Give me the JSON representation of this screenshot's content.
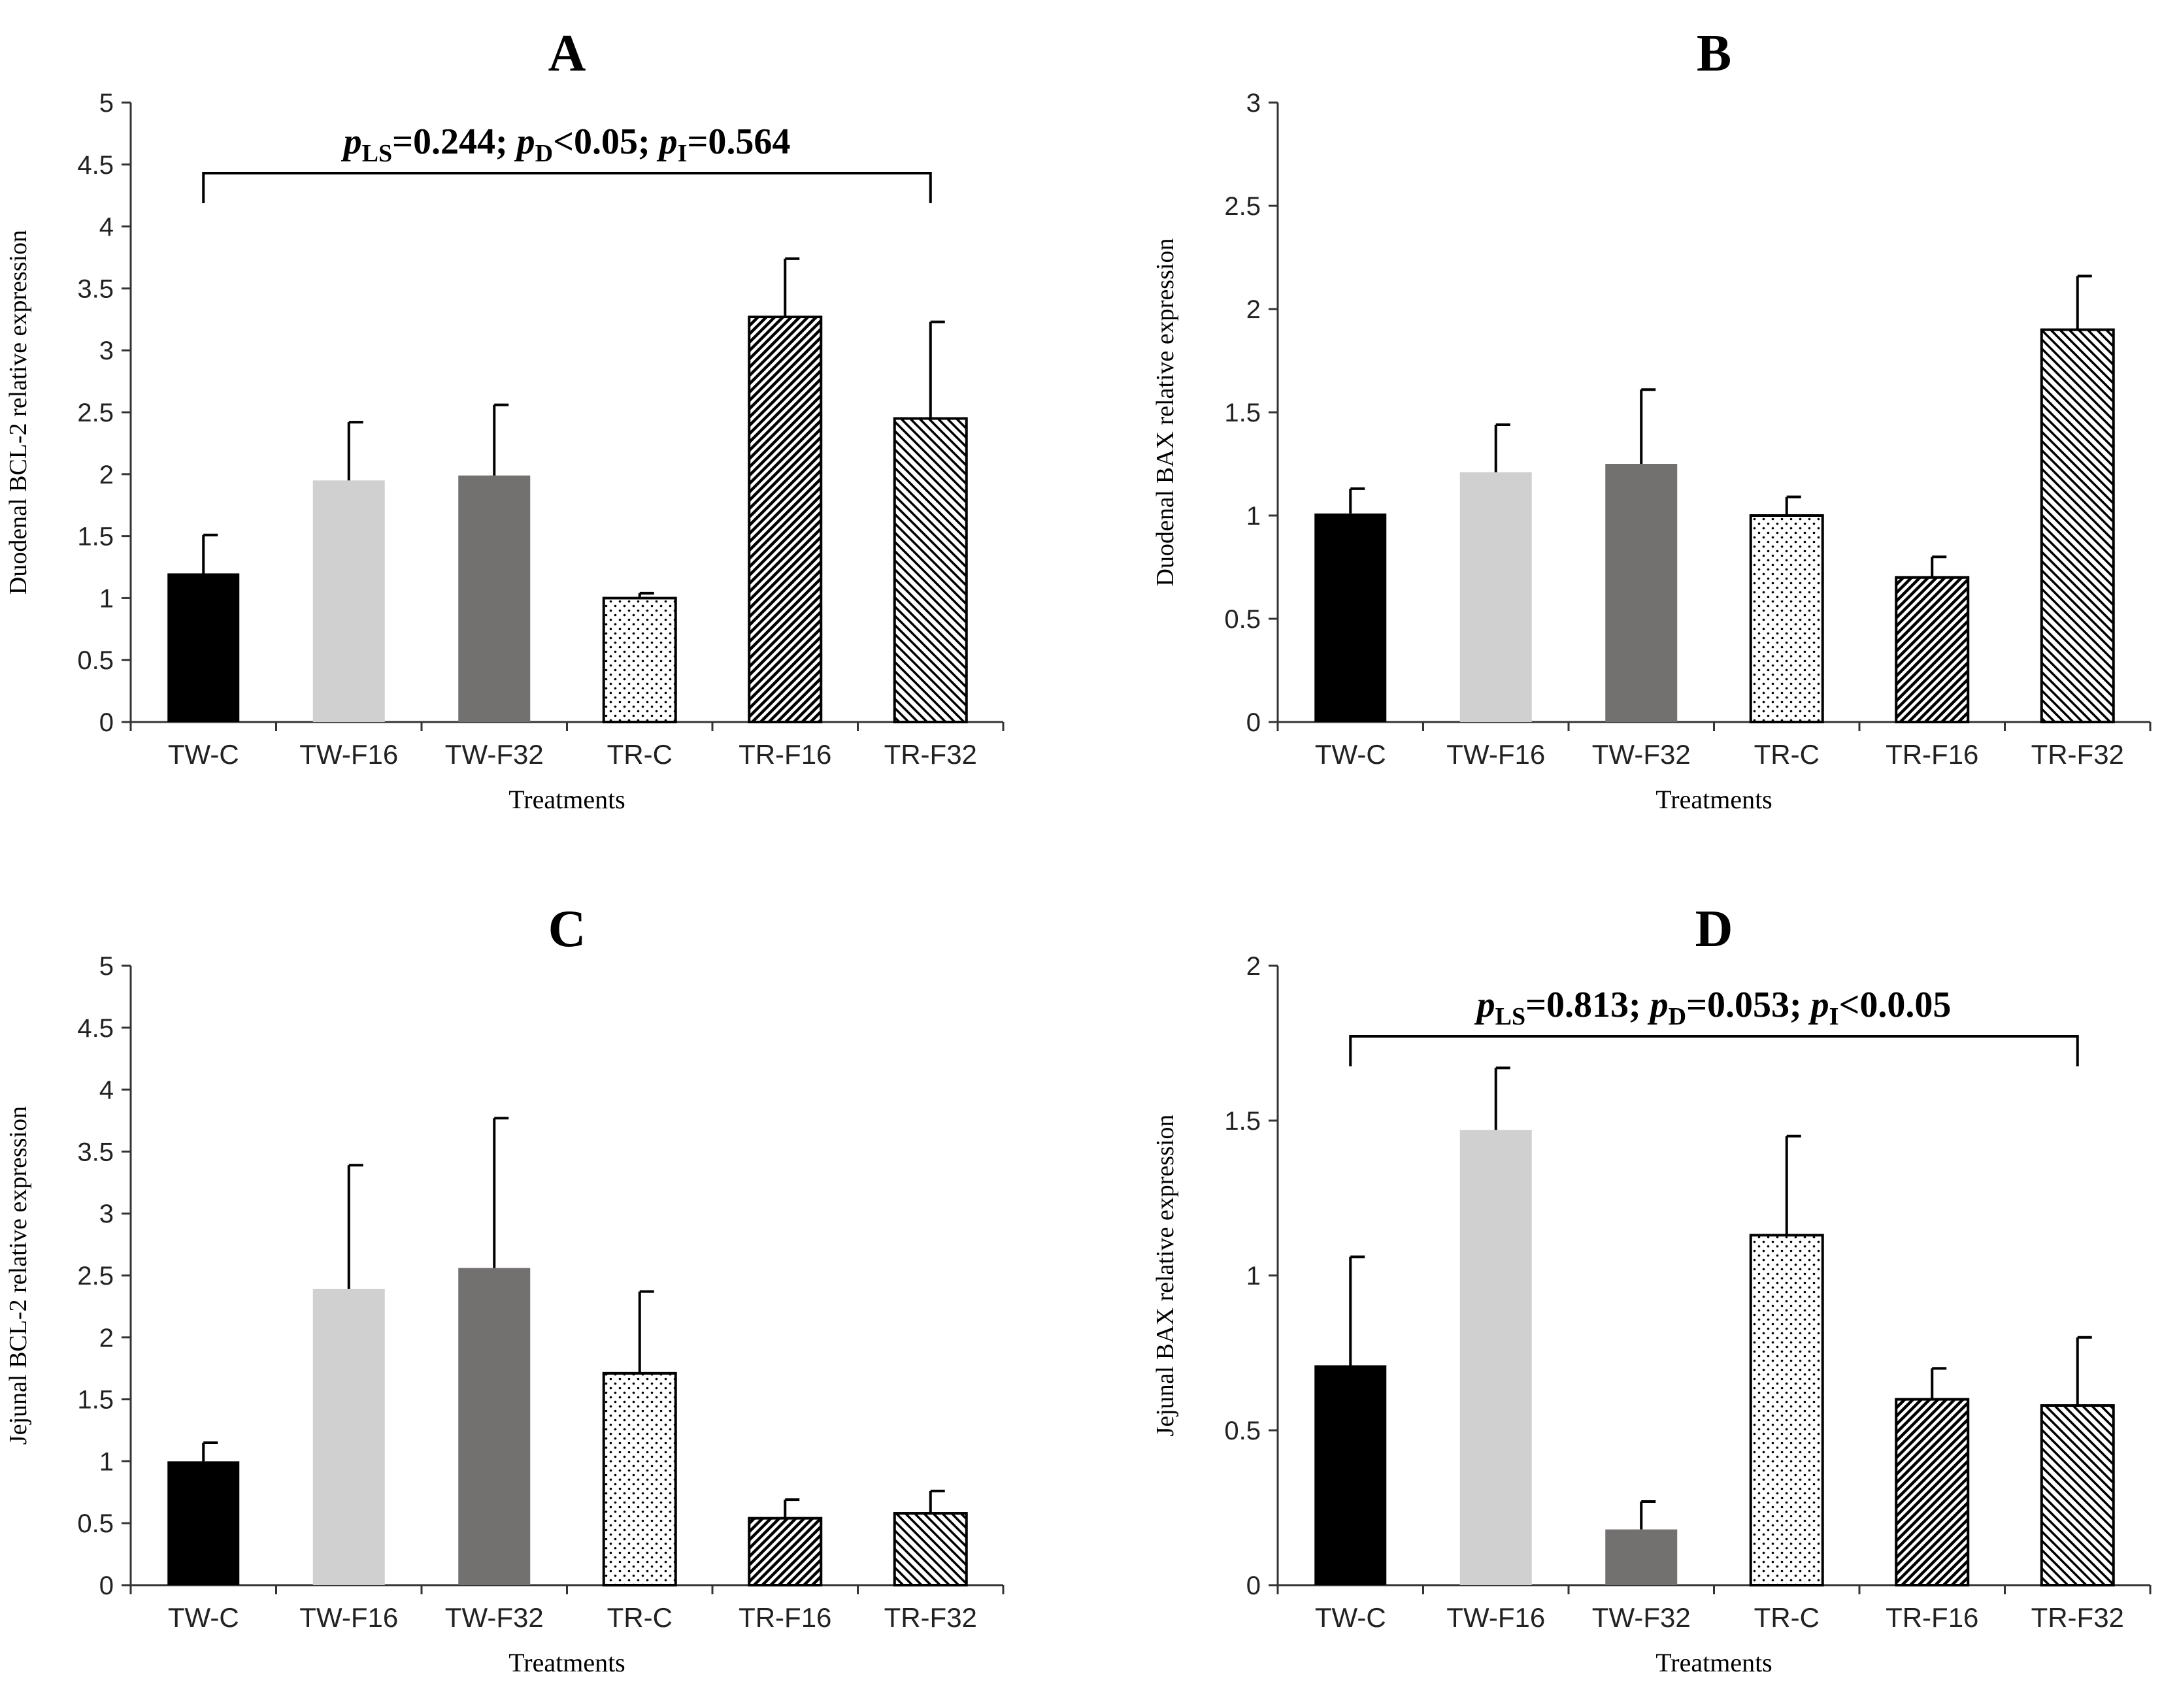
{
  "colors": {
    "TW-C": "#000000",
    "TW-F16": "#d0d0d0",
    "TW-F32": "#737070",
    "stroke": "#000000"
  },
  "chart_data": [
    {
      "panel": "A",
      "type": "bar",
      "title": "A",
      "xlabel": "Treatments",
      "ylabel": "Duodenal BCL-2 relative expression",
      "ylim": [
        0,
        5
      ],
      "yticks": [
        "0",
        "0.5",
        "1",
        "1.5",
        "2",
        "2.5",
        "3",
        "3.5",
        "4",
        "4.5",
        "5"
      ],
      "categories": [
        "TW-C",
        "TW-F16",
        "TW-F32",
        "TR-C",
        "TR-F16",
        "TR-F32"
      ],
      "values": [
        1.2,
        1.95,
        1.99,
        1.0,
        3.27,
        2.45
      ],
      "errors": [
        0.31,
        0.47,
        0.57,
        0.04,
        0.47,
        0.78
      ],
      "stat": {
        "a_lbl": "p",
        "a_sub": "LS",
        "a_val": "=0.244; ",
        "b_lbl": "p",
        "b_sub": "D",
        "b_val": "<0.05; ",
        "c_lbl": "p",
        "c_sub": "I",
        "c_val": "=0.564"
      },
      "stat_span": [
        0,
        5
      ]
    },
    {
      "panel": "B",
      "type": "bar",
      "title": "B",
      "xlabel": "Treatments",
      "ylabel": "Duodenal BAX relative expression",
      "ylim": [
        0,
        3
      ],
      "yticks": [
        "0",
        "0.5",
        "1",
        "1.5",
        "2",
        "2.5",
        "3"
      ],
      "categories": [
        "TW-C",
        "TW-F16",
        "TW-F32",
        "TR-C",
        "TR-F16",
        "TR-F32"
      ],
      "values": [
        1.01,
        1.21,
        1.25,
        1.0,
        0.7,
        1.9
      ],
      "errors": [
        0.12,
        0.23,
        0.36,
        0.09,
        0.1,
        0.26
      ]
    },
    {
      "panel": "C",
      "type": "bar",
      "title": "C",
      "xlabel": "Treatments",
      "ylabel": "Jejunal BCL-2 relative expression",
      "ylim": [
        0,
        5
      ],
      "yticks": [
        "0",
        "0.5",
        "1",
        "1.5",
        "2",
        "2.5",
        "3",
        "3.5",
        "4",
        "4.5",
        "5"
      ],
      "categories": [
        "TW-C",
        "TW-F16",
        "TW-F32",
        "TR-C",
        "TR-F16",
        "TR-F32"
      ],
      "values": [
        1.0,
        2.39,
        2.56,
        1.71,
        0.54,
        0.58
      ],
      "errors": [
        0.15,
        1.0,
        1.21,
        0.66,
        0.15,
        0.18
      ]
    },
    {
      "panel": "D",
      "type": "bar",
      "title": "D",
      "xlabel": "Treatments",
      "ylabel": "Jejunal BAX relative expression",
      "ylim": [
        0,
        2
      ],
      "yticks": [
        "0",
        "0.5",
        "1",
        "1.5",
        "2"
      ],
      "categories": [
        "TW-C",
        "TW-F16",
        "TW-F32",
        "TR-C",
        "TR-F16",
        "TR-F32"
      ],
      "values": [
        0.71,
        1.47,
        0.18,
        1.13,
        0.6,
        0.58
      ],
      "errors": [
        0.35,
        0.2,
        0.09,
        0.32,
        0.1,
        0.22
      ],
      "stat": {
        "a_lbl": "p",
        "a_sub": "LS",
        "a_val": "=0.813; ",
        "b_lbl": "p",
        "b_sub": "D",
        "b_val": "=0.053; ",
        "c_lbl": "p",
        "c_sub": "I",
        "c_val": "<0.0.05"
      },
      "stat_span": [
        0,
        5
      ]
    }
  ]
}
